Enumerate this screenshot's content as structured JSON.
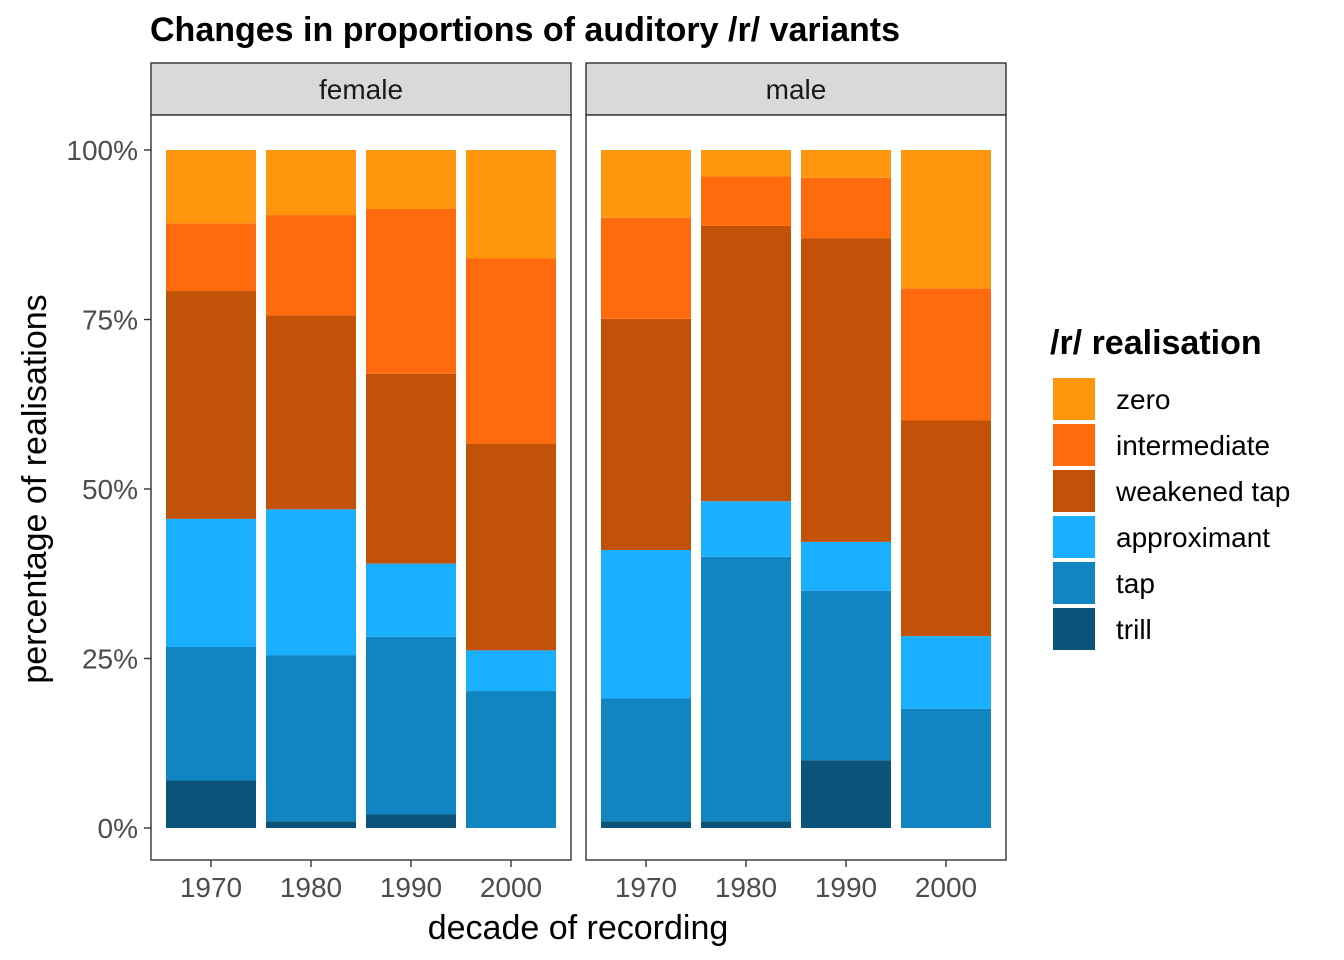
{
  "chart_data": {
    "type": "bar",
    "stacked": true,
    "position": "fill",
    "title": "Changes in proportions of auditory /r/ variants",
    "xlabel": "decade of recording",
    "ylabel": "percentage of realisations",
    "ylim": [
      0,
      100
    ],
    "yticks": [
      "0%",
      "25%",
      "50%",
      "75%",
      "100%"
    ],
    "ytick_values": [
      0,
      25,
      50,
      75,
      100
    ],
    "categories": [
      "1970",
      "1980",
      "1990",
      "2000"
    ],
    "legend": {
      "title": "/r/ realisation",
      "position": "right",
      "entries": [
        "zero",
        "intermediate",
        "weakened tap",
        "approximant",
        "tap",
        "trill"
      ]
    },
    "colors": {
      "trill": "#0c5379",
      "tap": "#1185c2",
      "approximant": "#1ab0ff",
      "weakened tap": "#c25207",
      "intermediate": "#ff6a0c",
      "zero": "#ff960d"
    },
    "stack_order_bottom_to_top": [
      "trill",
      "tap",
      "approximant",
      "weakened tap",
      "intermediate",
      "zero"
    ],
    "panels": [
      {
        "facet": "female",
        "series": [
          {
            "name": "trill",
            "values": [
              7,
              1,
              2,
              0
            ]
          },
          {
            "name": "tap",
            "values": [
              19.7,
              24.5,
              26.2,
              20.2
            ]
          },
          {
            "name": "approximant",
            "values": [
              18.9,
              21.5,
              10.8,
              6
            ]
          },
          {
            "name": "weakened tap",
            "values": [
              33.6,
              28.6,
              28,
              30.5
            ]
          },
          {
            "name": "intermediate",
            "values": [
              10,
              14.8,
              24.3,
              27.3
            ]
          },
          {
            "name": "zero",
            "values": [
              10.8,
              9.6,
              8.7,
              16
            ]
          }
        ]
      },
      {
        "facet": "male",
        "series": [
          {
            "name": "trill",
            "values": [
              1,
              1,
              10,
              0
            ]
          },
          {
            "name": "tap",
            "values": [
              18.1,
              39,
              25,
              17.6
            ]
          },
          {
            "name": "approximant",
            "values": [
              21.9,
              8.2,
              7.2,
              10.7
            ]
          },
          {
            "name": "weakened tap",
            "values": [
              34.1,
              40.6,
              44.8,
              31.8
            ]
          },
          {
            "name": "intermediate",
            "values": [
              14.9,
              7.3,
              8.9,
              19.5
            ]
          },
          {
            "name": "zero",
            "values": [
              10,
              3.9,
              4.1,
              20.4
            ]
          }
        ]
      }
    ]
  }
}
